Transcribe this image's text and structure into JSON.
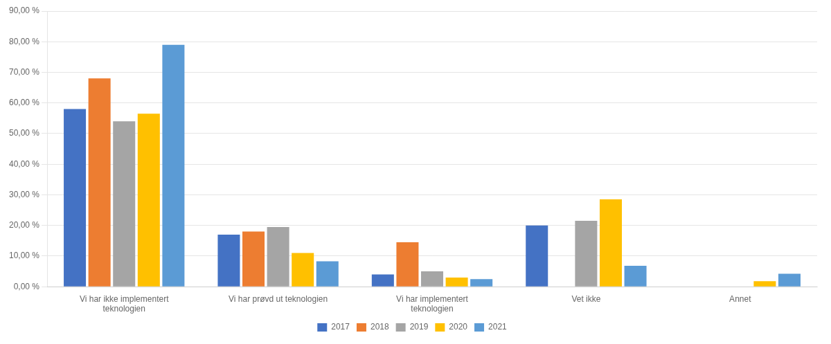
{
  "chart_data": {
    "type": "bar",
    "categories": [
      "Vi har ikke implementert\nteknologien",
      "Vi har prøvd ut teknologien",
      "Vi har implementert\nteknologien",
      "Vet ikke",
      "Annet"
    ],
    "series": [
      {
        "name": "2017",
        "color": "#4472C4",
        "values": [
          0.58,
          0.17,
          0.04,
          0.2,
          0.0
        ]
      },
      {
        "name": "2018",
        "color": "#ED7D31",
        "values": [
          0.68,
          0.18,
          0.145,
          0.0,
          0.0
        ]
      },
      {
        "name": "2019",
        "color": "#A5A5A5",
        "values": [
          0.54,
          0.195,
          0.05,
          0.215,
          0.0
        ]
      },
      {
        "name": "2020",
        "color": "#FFC000",
        "values": [
          0.565,
          0.11,
          0.03,
          0.285,
          0.018
        ]
      },
      {
        "name": "2021",
        "color": "#5B9BD5",
        "values": [
          0.79,
          0.083,
          0.025,
          0.068,
          0.042
        ]
      }
    ],
    "ylim": [
      0,
      0.9
    ],
    "yticks": [
      {
        "value": 0.0,
        "label": "0,00 %"
      },
      {
        "value": 0.1,
        "label": "10,00 %"
      },
      {
        "value": 0.2,
        "label": "20,00 %"
      },
      {
        "value": 0.3,
        "label": "30,00 %"
      },
      {
        "value": 0.4,
        "label": "40,00 %"
      },
      {
        "value": 0.5,
        "label": "50,00 %"
      },
      {
        "value": 0.6,
        "label": "60,00 %"
      },
      {
        "value": 0.7,
        "label": "70,00 %"
      },
      {
        "value": 0.8,
        "label": "80,00 %"
      },
      {
        "value": 0.9,
        "label": "90,00 %"
      }
    ],
    "grid": true,
    "legend": "bottom"
  }
}
